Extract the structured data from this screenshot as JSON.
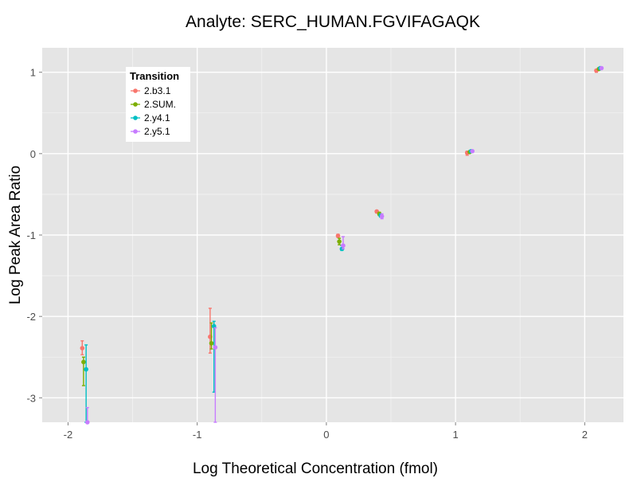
{
  "chart_data": {
    "type": "scatter",
    "title": "Analyte: SERC_HUMAN.FGVIFAGAQK",
    "xlabel": "Log Theoretical Concentration (fmol)",
    "ylabel": "Log Peak Area Ratio",
    "xlim": [
      -2.2,
      2.3
    ],
    "ylim": [
      -3.3,
      1.3
    ],
    "x_ticks": [
      -2,
      -1,
      0,
      1,
      2
    ],
    "x_tick_labels": [
      "-2",
      "-1",
      "0",
      "1",
      "2"
    ],
    "y_ticks": [
      -3,
      -2,
      -1,
      0,
      1
    ],
    "y_tick_labels": [
      "-3",
      "-2",
      "-1",
      "0",
      "1"
    ],
    "grid": true,
    "legend": {
      "title": "Transition",
      "position": "top-left"
    },
    "series": [
      {
        "name": "2.b3.1",
        "color": "#F8766D",
        "points": [
          {
            "x": -1.89,
            "y": -2.39,
            "ymin": -2.47,
            "ymax": -2.3
          },
          {
            "x": -0.9,
            "y": -2.25,
            "ymin": -2.45,
            "ymax": -1.9
          },
          {
            "x": 0.09,
            "y": -1.01,
            "ymin": -1.03,
            "ymax": -0.99
          },
          {
            "x": 0.39,
            "y": -0.71,
            "ymin": -0.73,
            "ymax": -0.7
          },
          {
            "x": 1.09,
            "y": 0.01,
            "ymin": -0.02,
            "ymax": 0.03
          },
          {
            "x": 2.09,
            "y": 1.02,
            "ymin": 1.0,
            "ymax": 1.03
          }
        ]
      },
      {
        "name": "2.SUM.",
        "color": "#7CAE00",
        "points": [
          {
            "x": -1.88,
            "y": -2.56,
            "ymin": -2.85,
            "ymax": -2.5
          },
          {
            "x": -0.89,
            "y": -2.33,
            "ymin": -2.4,
            "ymax": -2.08
          },
          {
            "x": 0.1,
            "y": -1.08,
            "ymin": -1.12,
            "ymax": -1.04
          },
          {
            "x": 0.41,
            "y": -0.74,
            "ymin": -0.76,
            "ymax": -0.72
          },
          {
            "x": 1.11,
            "y": 0.02,
            "ymin": 0.01,
            "ymax": 0.03
          },
          {
            "x": 2.11,
            "y": 1.04,
            "ymin": 1.03,
            "ymax": 1.05
          }
        ]
      },
      {
        "name": "2.y4.1",
        "color": "#00BFC4",
        "points": [
          {
            "x": -1.86,
            "y": -2.65,
            "ymin": -3.3,
            "ymax": -2.35
          },
          {
            "x": -0.87,
            "y": -2.12,
            "ymin": -2.93,
            "ymax": -2.06
          },
          {
            "x": 0.12,
            "y": -1.17,
            "ymin": -1.19,
            "ymax": -1.13
          },
          {
            "x": 0.42,
            "y": -0.76,
            "ymin": -0.78,
            "ymax": -0.74
          },
          {
            "x": 1.12,
            "y": 0.03,
            "ymin": 0.02,
            "ymax": 0.04
          },
          {
            "x": 2.12,
            "y": 1.05,
            "ymin": 1.04,
            "ymax": 1.06
          }
        ]
      },
      {
        "name": "2.y5.1",
        "color": "#C77CFF",
        "points": [
          {
            "x": -1.85,
            "y": -3.3,
            "ymin": -3.3,
            "ymax": -3.12
          },
          {
            "x": -0.86,
            "y": -2.38,
            "ymin": -3.3,
            "ymax": -2.14
          },
          {
            "x": 0.13,
            "y": -1.13,
            "ymin": -1.17,
            "ymax": -1.02
          },
          {
            "x": 0.43,
            "y": -0.77,
            "ymin": -0.8,
            "ymax": -0.74
          },
          {
            "x": 1.13,
            "y": 0.03,
            "ymin": 0.02,
            "ymax": 0.04
          },
          {
            "x": 2.13,
            "y": 1.05,
            "ymin": 1.04,
            "ymax": 1.06
          }
        ]
      }
    ]
  }
}
